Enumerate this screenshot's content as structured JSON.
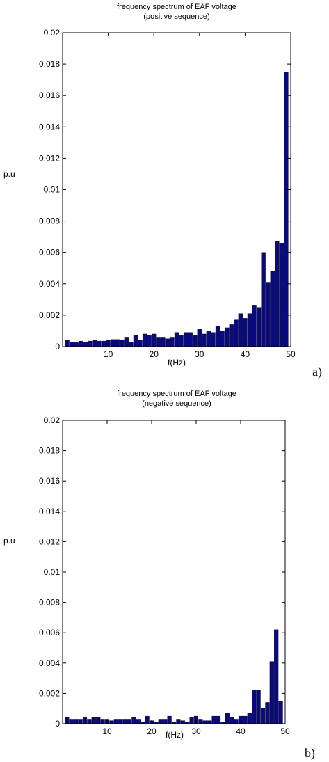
{
  "colors": {
    "bar": "#0a0a80",
    "axis": "#000000",
    "background": "#ffffff"
  },
  "chart_data": [
    {
      "type": "bar",
      "panel_label": "a)",
      "title": "frequency spectrum of EAF voltage",
      "subtitle": "(positive sequence)",
      "xlabel": "f(Hz)",
      "ylabel": "p.u",
      "ylabel_dot": ".",
      "xlim": [
        0,
        50
      ],
      "ylim": [
        0,
        0.02
      ],
      "xticks": [
        "10",
        "20",
        "30",
        "40",
        "50"
      ],
      "yticks": [
        "0",
        "0.002",
        "0.004",
        "0.006",
        "0.008",
        "0.01",
        "0.012",
        "0.014",
        "0.016",
        "0.018",
        "0.02"
      ],
      "grid": false,
      "x": [
        1,
        2,
        3,
        4,
        5,
        6,
        7,
        8,
        9,
        10,
        11,
        12,
        13,
        14,
        15,
        16,
        17,
        18,
        19,
        20,
        21,
        22,
        23,
        24,
        25,
        26,
        27,
        28,
        29,
        30,
        31,
        32,
        33,
        34,
        35,
        36,
        37,
        38,
        39,
        40,
        41,
        42,
        43,
        44,
        45,
        46,
        47,
        48,
        49
      ],
      "values": [
        0.0004,
        0.0003,
        0.00025,
        0.00035,
        0.0003,
        0.00035,
        0.0004,
        0.00035,
        0.00035,
        0.0004,
        0.00045,
        0.00045,
        0.0004,
        0.0006,
        0.0003,
        0.0007,
        0.0004,
        0.0008,
        0.0007,
        0.0008,
        0.0006,
        0.0006,
        0.0005,
        0.0006,
        0.0009,
        0.0007,
        0.0009,
        0.0009,
        0.0007,
        0.0011,
        0.0008,
        0.001,
        0.0009,
        0.0013,
        0.001,
        0.0012,
        0.0014,
        0.0017,
        0.0021,
        0.0018,
        0.0021,
        0.0026,
        0.0025,
        0.006,
        0.0041,
        0.0048,
        0.0067,
        0.0066,
        0.0175
      ]
    },
    {
      "type": "bar",
      "panel_label": "b)",
      "title": "frequency spectrum of EAF voltage",
      "subtitle": "(negative sequence)",
      "xlabel": "f(Hz)",
      "ylabel": "p.u",
      "ylabel_dot": ".",
      "xlim": [
        0,
        50
      ],
      "ylim": [
        0,
        0.02
      ],
      "xticks": [
        "10",
        "20",
        "30",
        "40",
        "50"
      ],
      "yticks": [
        "0",
        "0.002",
        "0.004",
        "0.006",
        "0.008",
        "0.01",
        "0.012",
        "0.014",
        "0.016",
        "0.018",
        "0.02"
      ],
      "grid": false,
      "x": [
        1,
        2,
        3,
        4,
        5,
        6,
        7,
        8,
        9,
        10,
        11,
        12,
        13,
        14,
        15,
        16,
        17,
        18,
        19,
        20,
        21,
        22,
        23,
        24,
        25,
        26,
        27,
        28,
        29,
        30,
        31,
        32,
        33,
        34,
        35,
        36,
        37,
        38,
        39,
        40,
        41,
        42,
        43,
        44,
        45,
        46,
        47,
        48,
        49
      ],
      "values": [
        0.0004,
        0.0003,
        0.0003,
        0.0003,
        0.0004,
        0.0003,
        0.0004,
        0.0004,
        0.0003,
        0.0003,
        0.0002,
        0.0003,
        0.0003,
        0.0003,
        0.0003,
        0.0004,
        0.0003,
        0.0001,
        0.0005,
        0.0002,
        0.0001,
        0.0003,
        0.0003,
        0.0005,
        0.0001,
        0.0003,
        0.0002,
        0.0001,
        0.0004,
        0.0005,
        0.0003,
        0.0002,
        0.0002,
        0.0005,
        0.0005,
        0.0001,
        0.0007,
        0.0004,
        0.0003,
        0.0005,
        0.0005,
        0.0007,
        0.0022,
        0.0022,
        0.001,
        0.0014,
        0.0041,
        0.0062,
        0.0015
      ]
    }
  ]
}
